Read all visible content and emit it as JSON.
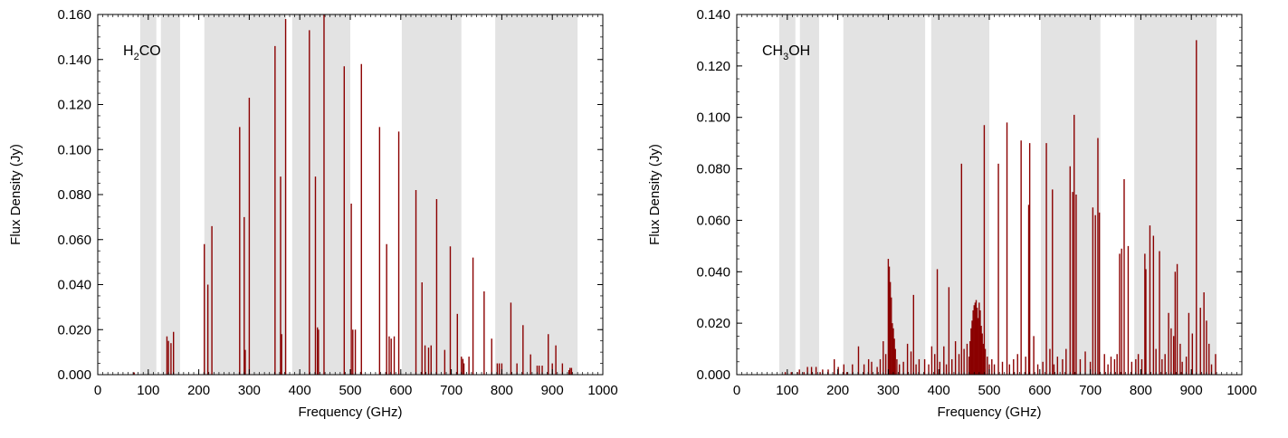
{
  "colors": {
    "line": "#8b0000",
    "band": "#e3e3e3",
    "axis": "#000000"
  },
  "chart_data": [
    {
      "type": "bar",
      "species_label": {
        "main": "H",
        "sub": "2",
        "rest": "CO"
      },
      "xlabel": "Frequency (GHz)",
      "ylabel": "Flux Density (Jy)",
      "xlim": [
        0,
        1000
      ],
      "ylim": [
        0,
        0.16
      ],
      "xticks": [
        "0",
        "100",
        "200",
        "300",
        "400",
        "500",
        "600",
        "700",
        "800",
        "900",
        "1000"
      ],
      "yticks": [
        "0.000",
        "0.020",
        "0.040",
        "0.060",
        "0.080",
        "0.100",
        "0.120",
        "0.140",
        "0.160"
      ],
      "shaded_bands_ghz": [
        [
          84,
          116
        ],
        [
          125,
          163
        ],
        [
          211,
          373
        ],
        [
          385,
          500
        ],
        [
          602,
          720
        ],
        [
          787,
          950
        ]
      ],
      "lines": [
        [
          72,
          0.001
        ],
        [
          137,
          0.017
        ],
        [
          140,
          0.015
        ],
        [
          145,
          0.014
        ],
        [
          150,
          0.019
        ],
        [
          211,
          0.058
        ],
        [
          218,
          0.04
        ],
        [
          226,
          0.066
        ],
        [
          281,
          0.11
        ],
        [
          290,
          0.07
        ],
        [
          292,
          0.011
        ],
        [
          300,
          0.123
        ],
        [
          351,
          0.146
        ],
        [
          362,
          0.088
        ],
        [
          364,
          0.018
        ],
        [
          372,
          0.158
        ],
        [
          419,
          0.153
        ],
        [
          431,
          0.088
        ],
        [
          435,
          0.021
        ],
        [
          437,
          0.02
        ],
        [
          448,
          0.16
        ],
        [
          488,
          0.137
        ],
        [
          502,
          0.076
        ],
        [
          505,
          0.02
        ],
        [
          510,
          0.02
        ],
        [
          522,
          0.138
        ],
        [
          558,
          0.11
        ],
        [
          572,
          0.058
        ],
        [
          577,
          0.017
        ],
        [
          581,
          0.016
        ],
        [
          587,
          0.017
        ],
        [
          596,
          0.108
        ],
        [
          630,
          0.082
        ],
        [
          642,
          0.041
        ],
        [
          648,
          0.013
        ],
        [
          655,
          0.012
        ],
        [
          660,
          0.013
        ],
        [
          671,
          0.078
        ],
        [
          687,
          0.011
        ],
        [
          698,
          0.057
        ],
        [
          712,
          0.027
        ],
        [
          720,
          0.008
        ],
        [
          723,
          0.007
        ],
        [
          725,
          0.005
        ],
        [
          735,
          0.008
        ],
        [
          743,
          0.052
        ],
        [
          765,
          0.037
        ],
        [
          780,
          0.016
        ],
        [
          791,
          0.005
        ],
        [
          795,
          0.005
        ],
        [
          800,
          0.005
        ],
        [
          818,
          0.032
        ],
        [
          830,
          0.005
        ],
        [
          842,
          0.022
        ],
        [
          857,
          0.009
        ],
        [
          870,
          0.004
        ],
        [
          874,
          0.004
        ],
        [
          880,
          0.004
        ],
        [
          892,
          0.018
        ],
        [
          900,
          0.005
        ],
        [
          907,
          0.013
        ],
        [
          920,
          0.005
        ],
        [
          933,
          0.002
        ],
        [
          935,
          0.003
        ],
        [
          938,
          0.003
        ]
      ]
    },
    {
      "type": "bar",
      "species_label": {
        "main": "CH",
        "sub": "3",
        "rest": "OH"
      },
      "xlabel": "Frequency (GHz)",
      "ylabel": "Flux Density (Jy)",
      "xlim": [
        0,
        1000
      ],
      "ylim": [
        0,
        0.14
      ],
      "xticks": [
        "0",
        "100",
        "200",
        "300",
        "400",
        "500",
        "600",
        "700",
        "800",
        "900",
        "1000"
      ],
      "yticks": [
        "0.000",
        "0.020",
        "0.040",
        "0.060",
        "0.080",
        "0.100",
        "0.120",
        "0.140"
      ],
      "shaded_bands_ghz": [
        [
          84,
          116
        ],
        [
          125,
          163
        ],
        [
          211,
          373
        ],
        [
          385,
          500
        ],
        [
          602,
          720
        ],
        [
          787,
          950
        ]
      ],
      "lines": [
        [
          96,
          0.001
        ],
        [
          108,
          0.001
        ],
        [
          120,
          0.001
        ],
        [
          124,
          0.002
        ],
        [
          133,
          0.001
        ],
        [
          140,
          0.003
        ],
        [
          148,
          0.003
        ],
        [
          157,
          0.003
        ],
        [
          165,
          0.001
        ],
        [
          170,
          0.002
        ],
        [
          181,
          0.002
        ],
        [
          193,
          0.006
        ],
        [
          201,
          0.003
        ],
        [
          212,
          0.004
        ],
        [
          218,
          0.001
        ],
        [
          229,
          0.004
        ],
        [
          241,
          0.011
        ],
        [
          252,
          0.004
        ],
        [
          261,
          0.006
        ],
        [
          267,
          0.005
        ],
        [
          278,
          0.003
        ],
        [
          284,
          0.006
        ],
        [
          290,
          0.013
        ],
        [
          295,
          0.008
        ],
        [
          300,
          0.045
        ],
        [
          302,
          0.042
        ],
        [
          304,
          0.036
        ],
        [
          306,
          0.03
        ],
        [
          308,
          0.02
        ],
        [
          310,
          0.018
        ],
        [
          312,
          0.014
        ],
        [
          314,
          0.01
        ],
        [
          317,
          0.006
        ],
        [
          322,
          0.004
        ],
        [
          330,
          0.005
        ],
        [
          338,
          0.012
        ],
        [
          345,
          0.009
        ],
        [
          350,
          0.031
        ],
        [
          355,
          0.004
        ],
        [
          361,
          0.006
        ],
        [
          372,
          0.006
        ],
        [
          380,
          0.004
        ],
        [
          386,
          0.011
        ],
        [
          392,
          0.008
        ],
        [
          397,
          0.041
        ],
        [
          402,
          0.005
        ],
        [
          410,
          0.011
        ],
        [
          415,
          0.004
        ],
        [
          420,
          0.034
        ],
        [
          426,
          0.006
        ],
        [
          433,
          0.013
        ],
        [
          440,
          0.008
        ],
        [
          445,
          0.082
        ],
        [
          450,
          0.01
        ],
        [
          456,
          0.012
        ],
        [
          460,
          0.007
        ],
        [
          462,
          0.013
        ],
        [
          464,
          0.018
        ],
        [
          466,
          0.021
        ],
        [
          468,
          0.025
        ],
        [
          470,
          0.027
        ],
        [
          472,
          0.028
        ],
        [
          474,
          0.029
        ],
        [
          476,
          0.026
        ],
        [
          478,
          0.022
        ],
        [
          480,
          0.028
        ],
        [
          482,
          0.025
        ],
        [
          484,
          0.019
        ],
        [
          486,
          0.016
        ],
        [
          488,
          0.012
        ],
        [
          490,
          0.097
        ],
        [
          492,
          0.01
        ],
        [
          496,
          0.007
        ],
        [
          500,
          0.004
        ],
        [
          505,
          0.006
        ],
        [
          510,
          0.004
        ],
        [
          518,
          0.082
        ],
        [
          526,
          0.005
        ],
        [
          535,
          0.098
        ],
        [
          540,
          0.004
        ],
        [
          548,
          0.006
        ],
        [
          556,
          0.008
        ],
        [
          563,
          0.091
        ],
        [
          572,
          0.007
        ],
        [
          578,
          0.066
        ],
        [
          580,
          0.09
        ],
        [
          588,
          0.015
        ],
        [
          596,
          0.004
        ],
        [
          606,
          0.005
        ],
        [
          613,
          0.09
        ],
        [
          620,
          0.01
        ],
        [
          625,
          0.072
        ],
        [
          628,
          0.004
        ],
        [
          635,
          0.007
        ],
        [
          645,
          0.006
        ],
        [
          652,
          0.01
        ],
        [
          660,
          0.081
        ],
        [
          665,
          0.071
        ],
        [
          668,
          0.101
        ],
        [
          672,
          0.07
        ],
        [
          680,
          0.006
        ],
        [
          690,
          0.009
        ],
        [
          700,
          0.005
        ],
        [
          705,
          0.065
        ],
        [
          710,
          0.062
        ],
        [
          715,
          0.092
        ],
        [
          718,
          0.063
        ],
        [
          728,
          0.008
        ],
        [
          735,
          0.004
        ],
        [
          741,
          0.007
        ],
        [
          748,
          0.006
        ],
        [
          753,
          0.008
        ],
        [
          758,
          0.047
        ],
        [
          762,
          0.049
        ],
        [
          767,
          0.076
        ],
        [
          775,
          0.05
        ],
        [
          782,
          0.005
        ],
        [
          790,
          0.006
        ],
        [
          795,
          0.008
        ],
        [
          802,
          0.006
        ],
        [
          808,
          0.047
        ],
        [
          810,
          0.041
        ],
        [
          818,
          0.058
        ],
        [
          825,
          0.054
        ],
        [
          830,
          0.01
        ],
        [
          837,
          0.048
        ],
        [
          842,
          0.006
        ],
        [
          848,
          0.008
        ],
        [
          855,
          0.024
        ],
        [
          860,
          0.018
        ],
        [
          865,
          0.015
        ],
        [
          868,
          0.04
        ],
        [
          872,
          0.043
        ],
        [
          878,
          0.012
        ],
        [
          882,
          0.005
        ],
        [
          890,
          0.007
        ],
        [
          895,
          0.024
        ],
        [
          902,
          0.016
        ],
        [
          910,
          0.13
        ],
        [
          918,
          0.026
        ],
        [
          925,
          0.032
        ],
        [
          930,
          0.021
        ],
        [
          935,
          0.012
        ],
        [
          940,
          0.004
        ],
        [
          948,
          0.008
        ]
      ]
    }
  ]
}
